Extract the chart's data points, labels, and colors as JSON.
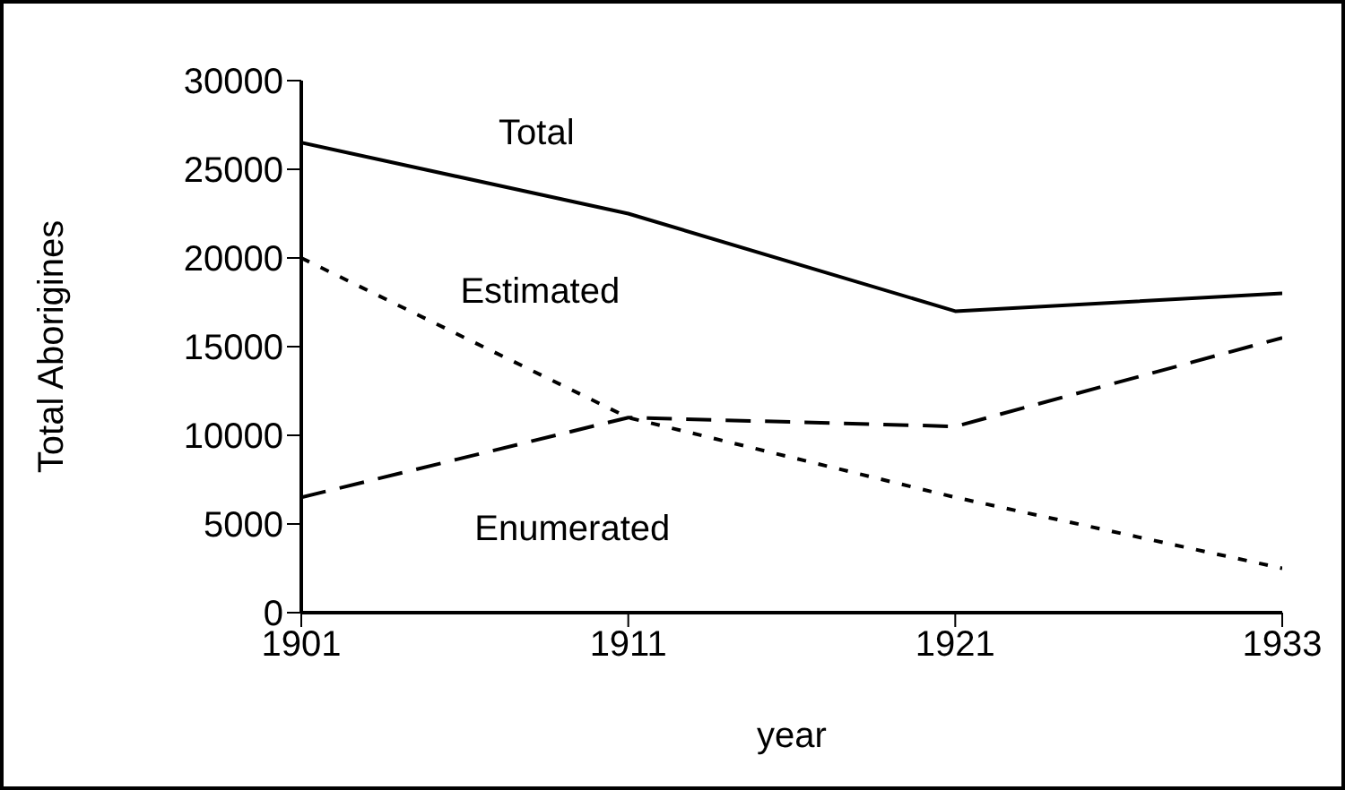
{
  "chart_data": {
    "type": "line",
    "xlabel": "year",
    "ylabel": "Total Aborigines",
    "categories": [
      "1901",
      "1911",
      "1921",
      "1933"
    ],
    "series": [
      {
        "name": "Total",
        "color": "#000000",
        "line_style": "solid",
        "values": [
          26500,
          22500,
          17000,
          18000
        ]
      },
      {
        "name": "Estimated",
        "color": "#000000",
        "line_style": "dotted",
        "values": [
          20000,
          11000,
          6500,
          2500
        ]
      },
      {
        "name": "Enumerated",
        "color": "#000000",
        "line_style": "dashed",
        "values": [
          6500,
          11000,
          10500,
          15500
        ]
      }
    ],
    "ylim": [
      0,
      30000
    ],
    "yticks": [
      0,
      5000,
      10000,
      15000,
      20000,
      25000,
      30000
    ],
    "grid": false,
    "legend": false,
    "marker": "none"
  }
}
